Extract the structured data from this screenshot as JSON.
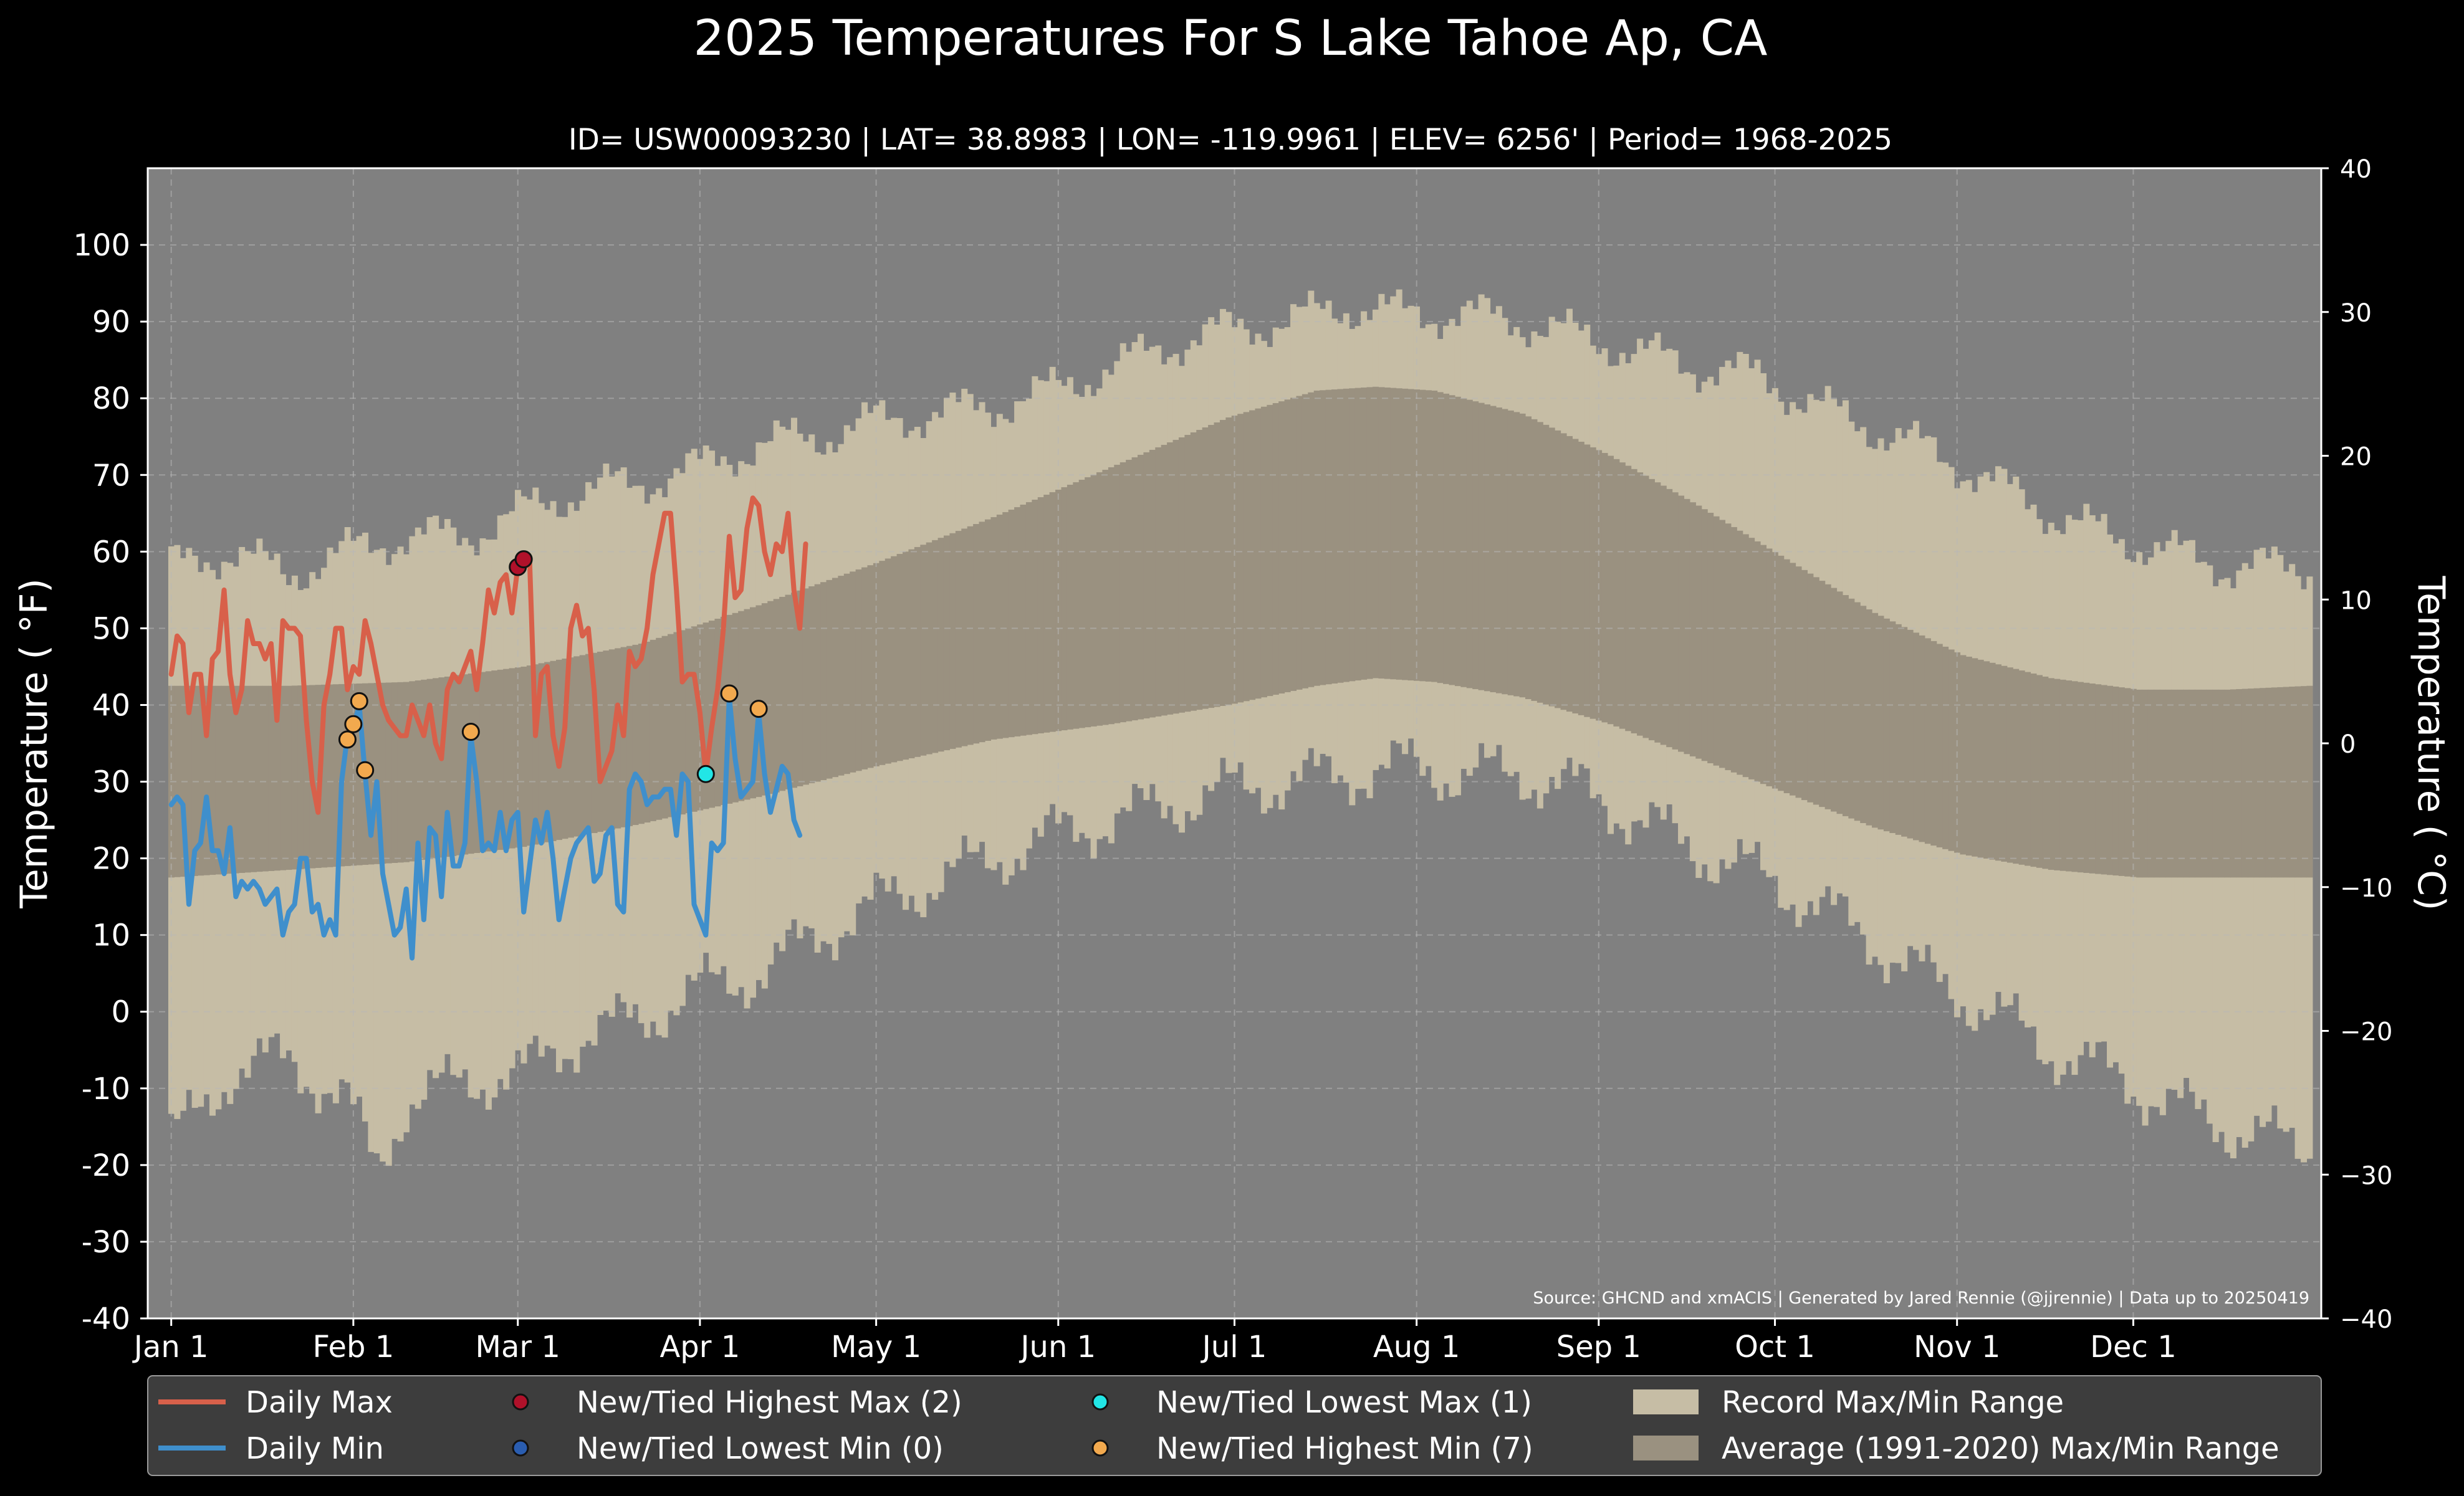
{
  "chart_data": {
    "type": "line",
    "title": "2025 Temperatures For S Lake Tahoe Ap, CA",
    "subtitle": "ID= USW00093230 | LAT= 38.8983 | LON= -119.9961 | ELEV= 6256' | Period= 1968-2025",
    "ylabel_left": "Temperature ( °F)",
    "ylabel_right": "Temperature ( °C)",
    "source": "Source: GHCND and xmACIS | Generated by Jared Rennie (@jjrennie) | Data up to 20250419",
    "ylim_f": [
      -40,
      110
    ],
    "ylim_c": [
      -40,
      40
    ],
    "y_ticks_f": [
      -40,
      -30,
      -20,
      -10,
      0,
      10,
      20,
      30,
      40,
      50,
      60,
      70,
      80,
      90,
      100
    ],
    "y_ticks_c": [
      -40,
      -30,
      -20,
      -10,
      0,
      10,
      20,
      30,
      40
    ],
    "y_tick_labels_c": [
      "−40",
      "−30",
      "−20",
      "−10",
      "0",
      "10",
      "20",
      "30",
      "40"
    ],
    "xlim_day": [
      -4,
      366
    ],
    "x_ticks": [
      {
        "day": 0,
        "label": "Jan 1"
      },
      {
        "day": 31,
        "label": "Feb 1"
      },
      {
        "day": 59,
        "label": "Mar 1"
      },
      {
        "day": 90,
        "label": "Apr 1"
      },
      {
        "day": 120,
        "label": "May 1"
      },
      {
        "day": 151,
        "label": "Jun 1"
      },
      {
        "day": 181,
        "label": "Jul 1"
      },
      {
        "day": 212,
        "label": "Aug 1"
      },
      {
        "day": 243,
        "label": "Sep 1"
      },
      {
        "day": 273,
        "label": "Oct 1"
      },
      {
        "day": 304,
        "label": "Nov 1"
      },
      {
        "day": 334,
        "label": "Dec 1"
      }
    ],
    "grid": true,
    "legend_placement": "bottom",
    "legend": [
      {
        "key": "daily_max",
        "label": "Daily Max",
        "kind": "line",
        "color": "#d8604a"
      },
      {
        "key": "daily_min",
        "label": "Daily Min",
        "kind": "line",
        "color": "#3f8fcc"
      },
      {
        "key": "new_high_max",
        "label": "New/Tied Highest Max (2)",
        "kind": "dot",
        "color": "#b0112a"
      },
      {
        "key": "new_low_min",
        "label": "New/Tied Lowest Min (0)",
        "kind": "dot",
        "color": "#2a5db0"
      },
      {
        "key": "new_low_max",
        "label": "New/Tied Lowest Max (1)",
        "kind": "dot",
        "color": "#22e6e6"
      },
      {
        "key": "new_high_min",
        "label": "New/Tied Highest Min (7)",
        "kind": "dot",
        "color": "#f2a94e"
      },
      {
        "key": "record_range",
        "label": "Record Max/Min Range",
        "kind": "box",
        "color": "#c6bda5"
      },
      {
        "key": "avg_range",
        "label": "Average (1991-2020) Max/Min Range",
        "kind": "box",
        "color": "#9a9180"
      }
    ],
    "colors": {
      "figure_bg": "#000000",
      "plot_bg": "#808080",
      "record": "#c6bda5",
      "average": "#9a9180",
      "daily_max": "#d8604a",
      "daily_min": "#3f8fcc",
      "grid": "#b8b8b8",
      "text": "#ffffff",
      "legend_bg": "#3d3d3d"
    },
    "record_max_anchors": [
      [
        0,
        58
      ],
      [
        10,
        60
      ],
      [
        20,
        57
      ],
      [
        30,
        60
      ],
      [
        40,
        62
      ],
      [
        50,
        62
      ],
      [
        59,
        65
      ],
      [
        70,
        68
      ],
      [
        80,
        69
      ],
      [
        90,
        71
      ],
      [
        100,
        74
      ],
      [
        110,
        75
      ],
      [
        120,
        77
      ],
      [
        130,
        78
      ],
      [
        140,
        79
      ],
      [
        150,
        81
      ],
      [
        160,
        84
      ],
      [
        170,
        87
      ],
      [
        180,
        89
      ],
      [
        190,
        90
      ],
      [
        200,
        92
      ],
      [
        210,
        91
      ],
      [
        220,
        91
      ],
      [
        230,
        90
      ],
      [
        240,
        88
      ],
      [
        250,
        86
      ],
      [
        260,
        84
      ],
      [
        270,
        83
      ],
      [
        280,
        79
      ],
      [
        290,
        76
      ],
      [
        300,
        73
      ],
      [
        310,
        69
      ],
      [
        320,
        65
      ],
      [
        330,
        62
      ],
      [
        340,
        60
      ],
      [
        350,
        58
      ],
      [
        364,
        58
      ]
    ],
    "record_min_anchors": [
      [
        0,
        -17
      ],
      [
        10,
        -8
      ],
      [
        20,
        -6
      ],
      [
        30,
        -12
      ],
      [
        35,
        -20
      ],
      [
        40,
        -12
      ],
      [
        50,
        -9
      ],
      [
        60,
        -8
      ],
      [
        70,
        -3
      ],
      [
        80,
        -1
      ],
      [
        90,
        3
      ],
      [
        100,
        5
      ],
      [
        110,
        10
      ],
      [
        120,
        14
      ],
      [
        130,
        17
      ],
      [
        140,
        20
      ],
      [
        150,
        23
      ],
      [
        160,
        25
      ],
      [
        170,
        27
      ],
      [
        180,
        29
      ],
      [
        190,
        30
      ],
      [
        200,
        31
      ],
      [
        210,
        32
      ],
      [
        220,
        31
      ],
      [
        230,
        31
      ],
      [
        240,
        29
      ],
      [
        250,
        25
      ],
      [
        260,
        21
      ],
      [
        270,
        18
      ],
      [
        280,
        14
      ],
      [
        290,
        9
      ],
      [
        300,
        4
      ],
      [
        310,
        0
      ],
      [
        320,
        -5
      ],
      [
        330,
        -8
      ],
      [
        340,
        -12
      ],
      [
        350,
        -15
      ],
      [
        364,
        -18
      ]
    ],
    "average_max_anchors": [
      [
        0,
        42.5
      ],
      [
        20,
        42.5
      ],
      [
        40,
        43
      ],
      [
        60,
        45
      ],
      [
        80,
        48
      ],
      [
        100,
        53
      ],
      [
        120,
        58.5
      ],
      [
        140,
        64.5
      ],
      [
        160,
        71
      ],
      [
        180,
        77.5
      ],
      [
        195,
        81
      ],
      [
        205,
        81.5
      ],
      [
        215,
        81
      ],
      [
        230,
        78
      ],
      [
        245,
        72.5
      ],
      [
        260,
        66
      ],
      [
        275,
        59
      ],
      [
        290,
        52
      ],
      [
        305,
        46.5
      ],
      [
        320,
        43.5
      ],
      [
        335,
        42
      ],
      [
        350,
        42
      ],
      [
        364,
        42.5
      ]
    ],
    "average_min_anchors": [
      [
        0,
        17.5
      ],
      [
        20,
        18.5
      ],
      [
        40,
        19.5
      ],
      [
        60,
        21.5
      ],
      [
        80,
        24.5
      ],
      [
        100,
        28
      ],
      [
        120,
        32
      ],
      [
        140,
        35.5
      ],
      [
        160,
        37.5
      ],
      [
        180,
        40
      ],
      [
        195,
        42.5
      ],
      [
        205,
        43.5
      ],
      [
        215,
        43
      ],
      [
        230,
        41
      ],
      [
        245,
        37.5
      ],
      [
        260,
        33
      ],
      [
        275,
        28.5
      ],
      [
        290,
        24
      ],
      [
        305,
        20.5
      ],
      [
        320,
        18.5
      ],
      [
        335,
        17.5
      ],
      [
        350,
        17.5
      ],
      [
        364,
        17.5
      ]
    ],
    "daily_max": [
      [
        0,
        44
      ],
      [
        1,
        49
      ],
      [
        2,
        48
      ],
      [
        3,
        39
      ],
      [
        4,
        44
      ],
      [
        5,
        44
      ],
      [
        6,
        36
      ],
      [
        7,
        46
      ],
      [
        8,
        47
      ],
      [
        9,
        55
      ],
      [
        10,
        44
      ],
      [
        11,
        39
      ],
      [
        12,
        42
      ],
      [
        13,
        51
      ],
      [
        14,
        48
      ],
      [
        15,
        48
      ],
      [
        16,
        46
      ],
      [
        17,
        48
      ],
      [
        18,
        38
      ],
      [
        19,
        51
      ],
      [
        20,
        50
      ],
      [
        21,
        50
      ],
      [
        22,
        49
      ],
      [
        23,
        38
      ],
      [
        24,
        30
      ],
      [
        25,
        26
      ],
      [
        26,
        40
      ],
      [
        27,
        44
      ],
      [
        28,
        50
      ],
      [
        29,
        50
      ],
      [
        30,
        42
      ],
      [
        31,
        45
      ],
      [
        32,
        44
      ],
      [
        33,
        51
      ],
      [
        34,
        48
      ],
      [
        35,
        44
      ],
      [
        36,
        40
      ],
      [
        37,
        38
      ],
      [
        38,
        37
      ],
      [
        39,
        36
      ],
      [
        40,
        36
      ],
      [
        41,
        40
      ],
      [
        42,
        38
      ],
      [
        43,
        36
      ],
      [
        44,
        40
      ],
      [
        45,
        35
      ],
      [
        46,
        33
      ],
      [
        47,
        42
      ],
      [
        48,
        44
      ],
      [
        49,
        43
      ],
      [
        50,
        45
      ],
      [
        51,
        47
      ],
      [
        52,
        42
      ],
      [
        53,
        48
      ],
      [
        54,
        55
      ],
      [
        55,
        52
      ],
      [
        56,
        56
      ],
      [
        57,
        57
      ],
      [
        58,
        52
      ],
      [
        59,
        58
      ],
      [
        60,
        59
      ],
      [
        61,
        59
      ],
      [
        62,
        36
      ],
      [
        63,
        44
      ],
      [
        64,
        45
      ],
      [
        65,
        36
      ],
      [
        66,
        32
      ],
      [
        67,
        37
      ],
      [
        68,
        50
      ],
      [
        69,
        53
      ],
      [
        70,
        49
      ],
      [
        71,
        50
      ],
      [
        72,
        42
      ],
      [
        73,
        30
      ],
      [
        74,
        32
      ],
      [
        75,
        34
      ],
      [
        76,
        40
      ],
      [
        77,
        36
      ],
      [
        78,
        47
      ],
      [
        79,
        45
      ],
      [
        80,
        46
      ],
      [
        81,
        50
      ],
      [
        82,
        57
      ],
      [
        83,
        61
      ],
      [
        84,
        65
      ],
      [
        85,
        65
      ],
      [
        86,
        55
      ],
      [
        87,
        43
      ],
      [
        88,
        44
      ],
      [
        89,
        44
      ],
      [
        90,
        39
      ],
      [
        91,
        31
      ],
      [
        92,
        37
      ],
      [
        93,
        42
      ],
      [
        94,
        50
      ],
      [
        95,
        62
      ],
      [
        96,
        54
      ],
      [
        97,
        55
      ],
      [
        98,
        63
      ],
      [
        99,
        67
      ],
      [
        100,
        66
      ],
      [
        101,
        60
      ],
      [
        102,
        57
      ],
      [
        103,
        61
      ],
      [
        104,
        60
      ],
      [
        105,
        65
      ],
      [
        106,
        55
      ],
      [
        107,
        50
      ],
      [
        108,
        61
      ]
    ],
    "daily_min": [
      [
        0,
        27
      ],
      [
        1,
        28
      ],
      [
        2,
        27
      ],
      [
        3,
        14
      ],
      [
        4,
        21
      ],
      [
        5,
        22
      ],
      [
        6,
        28
      ],
      [
        7,
        21
      ],
      [
        8,
        21
      ],
      [
        9,
        18
      ],
      [
        10,
        24
      ],
      [
        11,
        15
      ],
      [
        12,
        17
      ],
      [
        13,
        16
      ],
      [
        14,
        17
      ],
      [
        15,
        16
      ],
      [
        16,
        14
      ],
      [
        17,
        15
      ],
      [
        18,
        16
      ],
      [
        19,
        10
      ],
      [
        20,
        13
      ],
      [
        21,
        14
      ],
      [
        22,
        20
      ],
      [
        23,
        20
      ],
      [
        24,
        13
      ],
      [
        25,
        14
      ],
      [
        26,
        10
      ],
      [
        27,
        12
      ],
      [
        28,
        10
      ],
      [
        29,
        30
      ],
      [
        30,
        36
      ],
      [
        31,
        37
      ],
      [
        32,
        40
      ],
      [
        33,
        31
      ],
      [
        34,
        23
      ],
      [
        35,
        30
      ],
      [
        36,
        18
      ],
      [
        37,
        14
      ],
      [
        38,
        10
      ],
      [
        39,
        11
      ],
      [
        40,
        16
      ],
      [
        41,
        7
      ],
      [
        42,
        22
      ],
      [
        43,
        12
      ],
      [
        44,
        24
      ],
      [
        45,
        23
      ],
      [
        46,
        15
      ],
      [
        47,
        26
      ],
      [
        48,
        19
      ],
      [
        49,
        19
      ],
      [
        50,
        22
      ],
      [
        51,
        36
      ],
      [
        52,
        30
      ],
      [
        53,
        21
      ],
      [
        54,
        22
      ],
      [
        55,
        21
      ],
      [
        56,
        26
      ],
      [
        57,
        21
      ],
      [
        58,
        25
      ],
      [
        59,
        26
      ],
      [
        60,
        13
      ],
      [
        61,
        19
      ],
      [
        62,
        25
      ],
      [
        63,
        22
      ],
      [
        64,
        26
      ],
      [
        65,
        20
      ],
      [
        66,
        12
      ],
      [
        67,
        16
      ],
      [
        68,
        20
      ],
      [
        69,
        22
      ],
      [
        70,
        23
      ],
      [
        71,
        24
      ],
      [
        72,
        17
      ],
      [
        73,
        18
      ],
      [
        74,
        23
      ],
      [
        75,
        24
      ],
      [
        76,
        14
      ],
      [
        77,
        13
      ],
      [
        78,
        29
      ],
      [
        79,
        31
      ],
      [
        80,
        30
      ],
      [
        81,
        27
      ],
      [
        82,
        28
      ],
      [
        83,
        28
      ],
      [
        84,
        29
      ],
      [
        85,
        29
      ],
      [
        86,
        23
      ],
      [
        87,
        31
      ],
      [
        88,
        30
      ],
      [
        89,
        14
      ],
      [
        90,
        12
      ],
      [
        91,
        10
      ],
      [
        92,
        22
      ],
      [
        93,
        21
      ],
      [
        94,
        22
      ],
      [
        95,
        41
      ],
      [
        96,
        33
      ],
      [
        97,
        28
      ],
      [
        98,
        29
      ],
      [
        99,
        30
      ],
      [
        100,
        39
      ],
      [
        101,
        31
      ],
      [
        102,
        26
      ],
      [
        103,
        29
      ],
      [
        104,
        32
      ],
      [
        105,
        31
      ],
      [
        106,
        25
      ],
      [
        107,
        23
      ]
    ],
    "markers": {
      "new_high_max": [
        [
          59,
          58
        ],
        [
          60,
          59
        ]
      ],
      "new_low_min": [],
      "new_low_max": [
        [
          91,
          31
        ]
      ],
      "new_high_min": [
        [
          30,
          35.5
        ],
        [
          31,
          37.5
        ],
        [
          32,
          40.5
        ],
        [
          33,
          31.5
        ],
        [
          51,
          36.5
        ],
        [
          95,
          41.5
        ],
        [
          100,
          39.5
        ]
      ]
    }
  }
}
